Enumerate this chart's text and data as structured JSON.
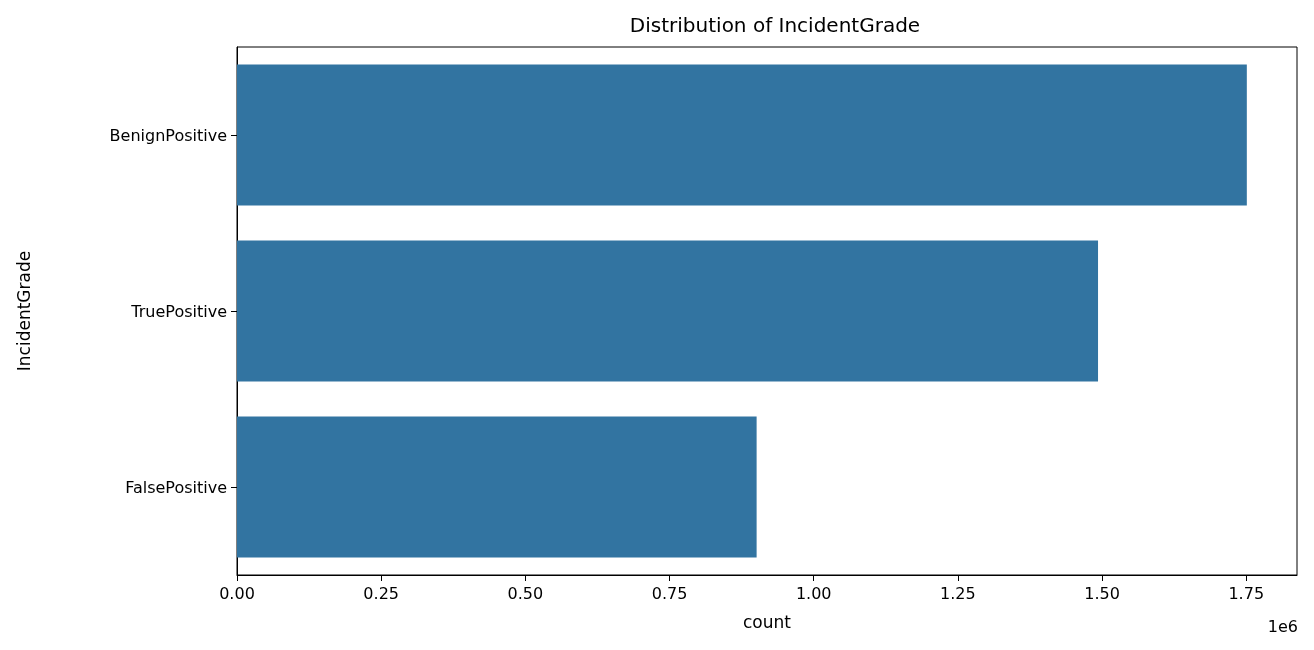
{
  "chart_data": {
    "type": "bar",
    "orientation": "horizontal",
    "title": "Distribution of IncidentGrade",
    "xlabel": "count",
    "ylabel": "IncidentGrade",
    "categories": [
      "BenignPositive",
      "TruePositive",
      "FalsePositive"
    ],
    "values": [
      1.751,
      1.493,
      0.901
    ],
    "color": "#3274a1",
    "xlim": [
      0,
      1.838
    ],
    "xticks": [
      {
        "value": 0,
        "label": "0.00"
      },
      {
        "value": 0.25,
        "label": "0.25"
      },
      {
        "value": 0.5,
        "label": "0.50"
      },
      {
        "value": 0.75,
        "label": "0.75"
      },
      {
        "value": 1,
        "label": "1.00"
      },
      {
        "value": 1.25,
        "label": "1.25"
      },
      {
        "value": 1.5,
        "label": "1.50"
      },
      {
        "value": 1.75,
        "label": "1.75"
      }
    ],
    "annotations": [
      "1e6"
    ],
    "grid": false
  }
}
